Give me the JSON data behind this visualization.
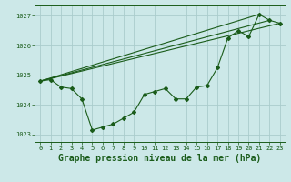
{
  "title": "Graphe pression niveau de la mer (hPa)",
  "background_color": "#cce8e8",
  "grid_color": "#aacccc",
  "line_color": "#1a5c1a",
  "marker_color": "#1a5c1a",
  "xlim": [
    -0.5,
    23.5
  ],
  "ylim": [
    1022.75,
    1027.35
  ],
  "yticks": [
    1023,
    1024,
    1025,
    1026,
    1027
  ],
  "xticks": [
    0,
    1,
    2,
    3,
    4,
    5,
    6,
    7,
    8,
    9,
    10,
    11,
    12,
    13,
    14,
    15,
    16,
    17,
    18,
    19,
    20,
    21,
    22,
    23
  ],
  "series1": [
    1024.8,
    1024.85,
    1024.6,
    1024.55,
    1024.2,
    1023.15,
    1023.25,
    1023.35,
    1023.55,
    1023.75,
    1024.35,
    1024.45,
    1024.55,
    1024.2,
    1024.2,
    1024.6,
    1024.65,
    1025.25,
    1026.25,
    1026.5,
    1026.3,
    1027.05,
    1026.85,
    1026.75
  ],
  "series2_x": [
    0,
    22
  ],
  "series2_y": [
    1024.8,
    1026.85
  ],
  "series3_x": [
    0,
    23
  ],
  "series3_y": [
    1024.8,
    1026.75
  ],
  "series4_x": [
    0,
    21
  ],
  "series4_y": [
    1024.8,
    1027.05
  ],
  "title_fontsize": 7,
  "tick_fontsize": 5
}
